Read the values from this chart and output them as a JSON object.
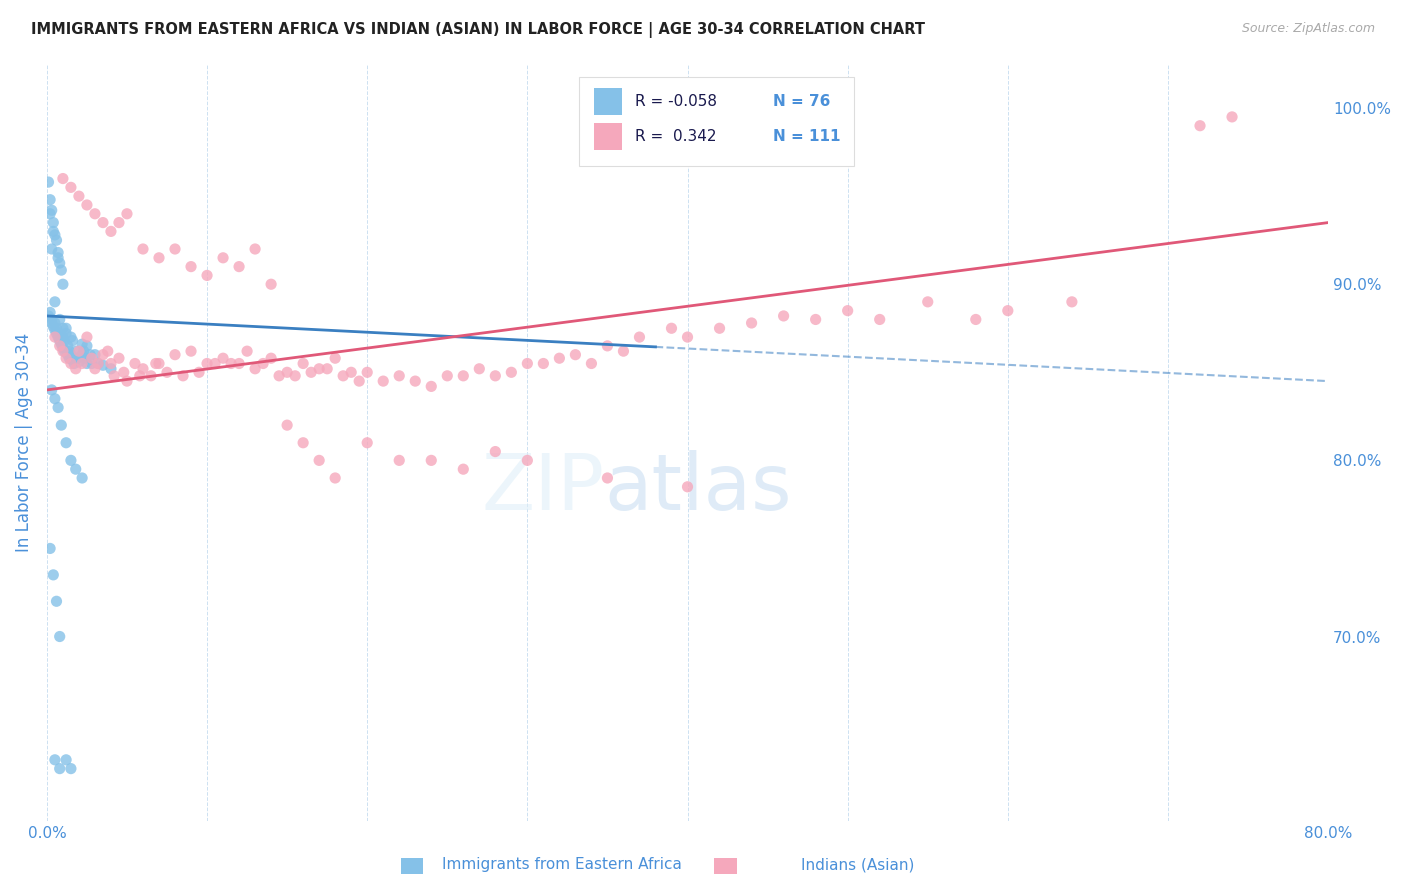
{
  "title": "IMMIGRANTS FROM EASTERN AFRICA VS INDIAN (ASIAN) IN LABOR FORCE | AGE 30-34 CORRELATION CHART",
  "source": "Source: ZipAtlas.com",
  "ylabel_left": "In Labor Force | Age 30-34",
  "x_min": 0.0,
  "x_max": 0.8,
  "y_min": 0.595,
  "y_max": 1.025,
  "color_blue": "#85c1e8",
  "color_pink": "#f5a8bc",
  "color_blue_line": "#3a7fc1",
  "color_pink_line": "#e05878",
  "color_axis_label": "#4a90d9",
  "color_title": "#222222",
  "color_grid": "#c8ddf0",
  "watermark_color": "#d5e8f5",
  "legend_label_1": "Immigrants from Eastern Africa",
  "legend_label_2": "Indians (Asian)",
  "blue_trend_x0": 0.0,
  "blue_trend_x1": 0.8,
  "blue_trend_y0": 0.882,
  "blue_trend_y1": 0.845,
  "pink_trend_x0": 0.0,
  "pink_trend_x1": 0.8,
  "pink_trend_y0": 0.84,
  "pink_trend_y1": 0.935,
  "blue_x": [
    0.001,
    0.002,
    0.002,
    0.003,
    0.003,
    0.003,
    0.004,
    0.004,
    0.005,
    0.005,
    0.005,
    0.006,
    0.006,
    0.007,
    0.007,
    0.008,
    0.008,
    0.009,
    0.009,
    0.01,
    0.01,
    0.01,
    0.011,
    0.011,
    0.012,
    0.012,
    0.013,
    0.013,
    0.014,
    0.014,
    0.015,
    0.015,
    0.016,
    0.016,
    0.017,
    0.018,
    0.019,
    0.02,
    0.022,
    0.022,
    0.023,
    0.024,
    0.025,
    0.025,
    0.027,
    0.028,
    0.03,
    0.032,
    0.035,
    0.04,
    0.001,
    0.002,
    0.003,
    0.004,
    0.005,
    0.006,
    0.007,
    0.008,
    0.009,
    0.01,
    0.003,
    0.005,
    0.007,
    0.009,
    0.012,
    0.015,
    0.018,
    0.022,
    0.002,
    0.004,
    0.006,
    0.008,
    0.005,
    0.008,
    0.012,
    0.015
  ],
  "blue_y": [
    0.882,
    0.884,
    0.94,
    0.878,
    0.88,
    0.92,
    0.876,
    0.93,
    0.874,
    0.878,
    0.89,
    0.872,
    0.875,
    0.87,
    0.915,
    0.868,
    0.88,
    0.866,
    0.87,
    0.864,
    0.875,
    0.87,
    0.862,
    0.868,
    0.875,
    0.872,
    0.86,
    0.865,
    0.858,
    0.862,
    0.87,
    0.86,
    0.868,
    0.857,
    0.855,
    0.862,
    0.858,
    0.856,
    0.866,
    0.86,
    0.862,
    0.858,
    0.855,
    0.865,
    0.86,
    0.855,
    0.86,
    0.855,
    0.854,
    0.852,
    0.958,
    0.948,
    0.942,
    0.935,
    0.928,
    0.925,
    0.918,
    0.912,
    0.908,
    0.9,
    0.84,
    0.835,
    0.83,
    0.82,
    0.81,
    0.8,
    0.795,
    0.79,
    0.75,
    0.735,
    0.72,
    0.7,
    0.63,
    0.625,
    0.63,
    0.625
  ],
  "pink_x": [
    0.005,
    0.008,
    0.01,
    0.012,
    0.015,
    0.018,
    0.02,
    0.022,
    0.025,
    0.028,
    0.03,
    0.032,
    0.035,
    0.038,
    0.04,
    0.042,
    0.045,
    0.048,
    0.05,
    0.055,
    0.058,
    0.06,
    0.065,
    0.068,
    0.07,
    0.075,
    0.08,
    0.085,
    0.09,
    0.095,
    0.1,
    0.105,
    0.11,
    0.115,
    0.12,
    0.125,
    0.13,
    0.135,
    0.14,
    0.145,
    0.15,
    0.155,
    0.16,
    0.165,
    0.17,
    0.175,
    0.18,
    0.185,
    0.19,
    0.195,
    0.2,
    0.21,
    0.22,
    0.23,
    0.24,
    0.25,
    0.26,
    0.27,
    0.28,
    0.29,
    0.3,
    0.31,
    0.32,
    0.33,
    0.34,
    0.35,
    0.36,
    0.37,
    0.39,
    0.4,
    0.42,
    0.44,
    0.46,
    0.48,
    0.5,
    0.52,
    0.55,
    0.58,
    0.6,
    0.64,
    0.01,
    0.015,
    0.02,
    0.025,
    0.03,
    0.035,
    0.04,
    0.045,
    0.05,
    0.06,
    0.07,
    0.08,
    0.09,
    0.1,
    0.11,
    0.12,
    0.13,
    0.14,
    0.15,
    0.16,
    0.17,
    0.18,
    0.2,
    0.22,
    0.24,
    0.26,
    0.28,
    0.3,
    0.35,
    0.4,
    0.72,
    0.74
  ],
  "pink_y": [
    0.87,
    0.865,
    0.862,
    0.858,
    0.855,
    0.852,
    0.862,
    0.855,
    0.87,
    0.858,
    0.852,
    0.855,
    0.86,
    0.862,
    0.855,
    0.848,
    0.858,
    0.85,
    0.845,
    0.855,
    0.848,
    0.852,
    0.848,
    0.855,
    0.855,
    0.85,
    0.86,
    0.848,
    0.862,
    0.85,
    0.855,
    0.855,
    0.858,
    0.855,
    0.855,
    0.862,
    0.852,
    0.855,
    0.858,
    0.848,
    0.85,
    0.848,
    0.855,
    0.85,
    0.852,
    0.852,
    0.858,
    0.848,
    0.85,
    0.845,
    0.85,
    0.845,
    0.848,
    0.845,
    0.842,
    0.848,
    0.848,
    0.852,
    0.848,
    0.85,
    0.855,
    0.855,
    0.858,
    0.86,
    0.855,
    0.865,
    0.862,
    0.87,
    0.875,
    0.87,
    0.875,
    0.878,
    0.882,
    0.88,
    0.885,
    0.88,
    0.89,
    0.88,
    0.885,
    0.89,
    0.96,
    0.955,
    0.95,
    0.945,
    0.94,
    0.935,
    0.93,
    0.935,
    0.94,
    0.92,
    0.915,
    0.92,
    0.91,
    0.905,
    0.915,
    0.91,
    0.92,
    0.9,
    0.82,
    0.81,
    0.8,
    0.79,
    0.81,
    0.8,
    0.8,
    0.795,
    0.805,
    0.8,
    0.79,
    0.785,
    0.99,
    0.995
  ]
}
